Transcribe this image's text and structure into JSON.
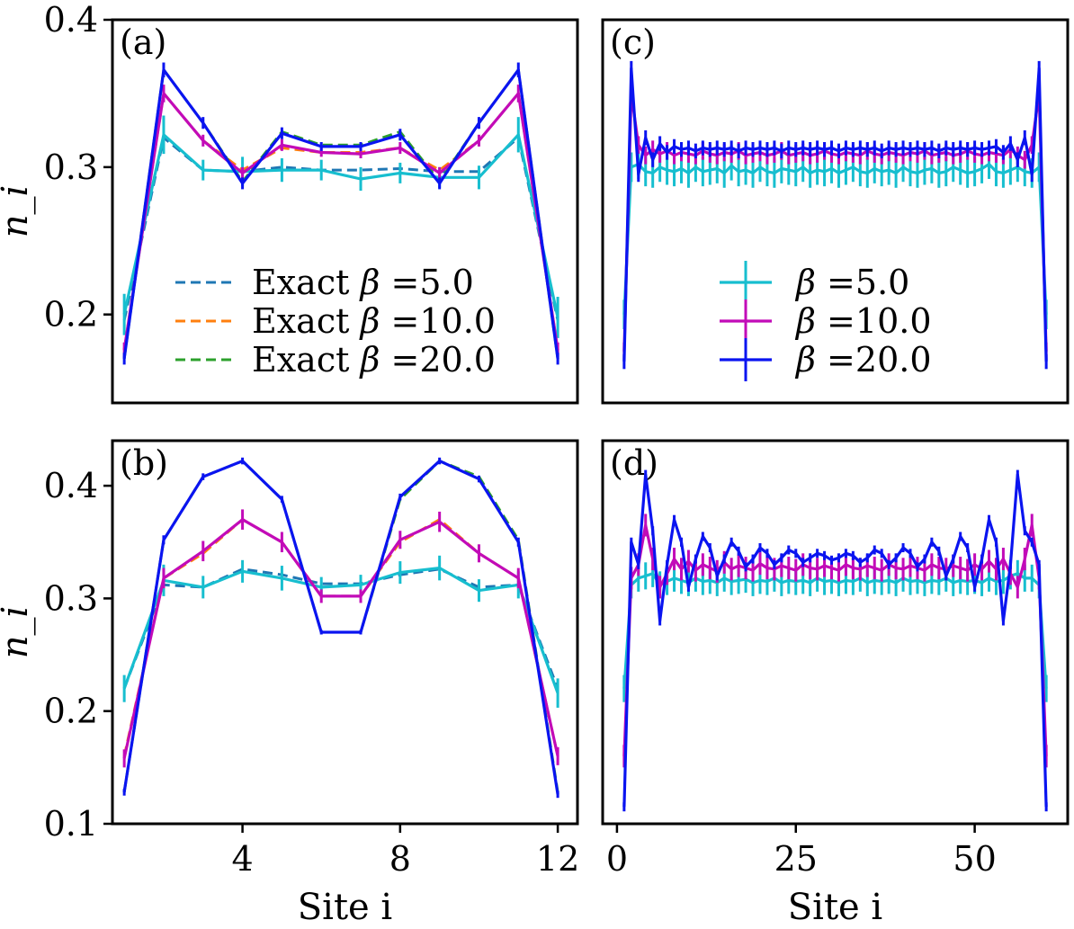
{
  "colors": {
    "exact_5": "#1f77b4",
    "exact_10": "#ff7f0e",
    "exact_20": "#2ca02c",
    "qmc_5": "#17becf",
    "qmc_10": "#c20bb8",
    "qmc_20": "#0a14f0"
  },
  "chart_data": [
    {
      "panel": "(a)",
      "type": "line",
      "ylabel": "n_i",
      "xlabel": "",
      "xlim": [
        0.7,
        12.5
      ],
      "ylim": [
        0.14,
        0.4
      ],
      "yticks": [
        "0.2",
        "0.3",
        "0.4"
      ],
      "ytick_values": [
        0.2,
        0.3,
        0.4
      ],
      "xticks": [],
      "xtick_values": [],
      "legend": {
        "placement": "lower-center",
        "entries": [
          {
            "prefix": "Exact ",
            "beta": "β",
            "value": " =5.0",
            "style": "dashed",
            "color_key": "exact_5"
          },
          {
            "prefix": "Exact ",
            "beta": "β",
            "value": " =10.0",
            "style": "dashed",
            "color_key": "exact_10"
          },
          {
            "prefix": "Exact ",
            "beta": "β",
            "value": " =20.0",
            "style": "dashed",
            "color_key": "exact_20"
          }
        ]
      },
      "x": [
        1,
        2,
        3,
        4,
        5,
        6,
        7,
        8,
        9,
        10,
        11,
        12
      ],
      "series": [
        {
          "name": "Exact β=5.0",
          "style": "dashed",
          "color_key": "exact_5",
          "values": [
            0.196,
            0.32,
            0.298,
            0.297,
            0.3,
            0.298,
            0.298,
            0.299,
            0.297,
            0.297,
            0.32,
            0.196
          ]
        },
        {
          "name": "Exact β=10.0",
          "style": "dashed",
          "color_key": "exact_10",
          "values": [
            0.176,
            0.35,
            0.318,
            0.298,
            0.313,
            0.31,
            0.31,
            0.313,
            0.298,
            0.318,
            0.35,
            0.176
          ]
        },
        {
          "name": "Exact β=20.0",
          "style": "dashed",
          "color_key": "exact_20",
          "values": [
            0.17,
            0.366,
            0.33,
            0.29,
            0.324,
            0.315,
            0.315,
            0.324,
            0.29,
            0.33,
            0.366,
            0.17
          ]
        },
        {
          "name": "β=5.0",
          "style": "solid",
          "color_key": "qmc_5",
          "values": [
            0.2,
            0.322,
            0.298,
            0.297,
            0.298,
            0.298,
            0.292,
            0.296,
            0.293,
            0.293,
            0.322,
            0.198
          ],
          "errors": [
            0.014,
            0.013,
            0.007,
            0.01,
            0.008,
            0.007,
            0.008,
            0.007,
            0.007,
            0.008,
            0.012,
            0.014
          ]
        },
        {
          "name": "β=10.0",
          "style": "solid",
          "color_key": "qmc_10",
          "values": [
            0.176,
            0.35,
            0.318,
            0.296,
            0.315,
            0.31,
            0.309,
            0.313,
            0.296,
            0.318,
            0.35,
            0.176
          ],
          "errors": [
            0.005,
            0.006,
            0.004,
            0.004,
            0.004,
            0.003,
            0.003,
            0.004,
            0.004,
            0.004,
            0.006,
            0.005
          ]
        },
        {
          "name": "β=20.0",
          "style": "solid",
          "color_key": "qmc_20",
          "values": [
            0.17,
            0.366,
            0.33,
            0.289,
            0.323,
            0.314,
            0.314,
            0.322,
            0.289,
            0.33,
            0.366,
            0.17
          ],
          "errors": [
            0.004,
            0.005,
            0.004,
            0.004,
            0.004,
            0.003,
            0.003,
            0.004,
            0.004,
            0.004,
            0.005,
            0.004
          ]
        }
      ]
    },
    {
      "panel": "(b)",
      "type": "line",
      "ylabel": "n_i",
      "xlabel": "Site i",
      "xlim": [
        0.7,
        12.5
      ],
      "ylim": [
        0.1,
        0.44
      ],
      "yticks": [
        "0.1",
        "0.2",
        "0.3",
        "0.4"
      ],
      "ytick_values": [
        0.1,
        0.2,
        0.3,
        0.4
      ],
      "xticks": [
        "4",
        "8",
        "12"
      ],
      "xtick_values": [
        4,
        8,
        12
      ],
      "x": [
        1,
        2,
        3,
        4,
        5,
        6,
        7,
        8,
        9,
        10,
        11,
        12
      ],
      "series": [
        {
          "name": "Exact β=5.0",
          "style": "dashed",
          "color_key": "exact_5",
          "values": [
            0.22,
            0.312,
            0.31,
            0.326,
            0.321,
            0.313,
            0.313,
            0.321,
            0.326,
            0.31,
            0.312,
            0.22
          ]
        },
        {
          "name": "Exact β=10.0",
          "style": "dashed",
          "color_key": "exact_10",
          "values": [
            0.16,
            0.318,
            0.34,
            0.37,
            0.35,
            0.302,
            0.302,
            0.35,
            0.37,
            0.34,
            0.318,
            0.16
          ]
        },
        {
          "name": "Exact β=20.0",
          "style": "dashed",
          "color_key": "exact_20",
          "values": [
            0.128,
            0.352,
            0.408,
            0.422,
            0.388,
            0.27,
            0.27,
            0.388,
            0.422,
            0.408,
            0.352,
            0.128
          ]
        },
        {
          "name": "β=5.0",
          "style": "solid",
          "color_key": "qmc_5",
          "values": [
            0.22,
            0.316,
            0.31,
            0.324,
            0.318,
            0.31,
            0.312,
            0.323,
            0.327,
            0.307,
            0.312,
            0.216
          ],
          "errors": [
            0.012,
            0.014,
            0.01,
            0.01,
            0.011,
            0.009,
            0.009,
            0.01,
            0.011,
            0.01,
            0.012,
            0.013
          ]
        },
        {
          "name": "β=10.0",
          "style": "solid",
          "color_key": "qmc_10",
          "values": [
            0.158,
            0.318,
            0.342,
            0.37,
            0.35,
            0.302,
            0.302,
            0.352,
            0.368,
            0.34,
            0.318,
            0.16
          ],
          "errors": [
            0.008,
            0.009,
            0.009,
            0.009,
            0.009,
            0.006,
            0.006,
            0.008,
            0.009,
            0.008,
            0.009,
            0.008
          ]
        },
        {
          "name": "β=20.0",
          "style": "solid",
          "color_key": "qmc_20",
          "values": [
            0.128,
            0.352,
            0.408,
            0.422,
            0.388,
            0.27,
            0.27,
            0.39,
            0.422,
            0.406,
            0.35,
            0.126
          ],
          "errors": [
            0.003,
            0.004,
            0.003,
            0.003,
            0.003,
            0.002,
            0.002,
            0.003,
            0.003,
            0.003,
            0.004,
            0.003
          ]
        }
      ]
    },
    {
      "panel": "(c)",
      "type": "line",
      "ylabel": "",
      "xlabel": "",
      "xlim": [
        -2,
        63
      ],
      "ylim": [
        0.14,
        0.4
      ],
      "yticks": [],
      "ytick_values": [],
      "xticks": [],
      "xtick_values": [],
      "legend": {
        "placement": "lower-center",
        "entries": [
          {
            "prefix": "",
            "beta": "β",
            "value": " =5.0",
            "style": "errorbar",
            "color_key": "qmc_5"
          },
          {
            "prefix": "",
            "beta": "β",
            "value": " =10.0",
            "style": "errorbar",
            "color_key": "qmc_10"
          },
          {
            "prefix": "",
            "beta": "β",
            "value": " =20.0",
            "style": "errorbar",
            "color_key": "qmc_20"
          }
        ]
      },
      "x_range": [
        1,
        60
      ],
      "series": [
        {
          "name": "β=5.0",
          "style": "solid",
          "color_key": "qmc_5",
          "values": [
            0.2,
            0.3,
            0.302,
            0.297,
            0.296,
            0.3,
            0.298,
            0.297,
            0.299,
            0.296,
            0.3,
            0.297,
            0.298,
            0.299,
            0.296,
            0.301,
            0.297,
            0.298,
            0.296,
            0.3,
            0.297,
            0.296,
            0.299,
            0.298,
            0.297,
            0.3,
            0.296,
            0.298,
            0.297,
            0.299,
            0.296,
            0.298,
            0.3,
            0.297,
            0.296,
            0.299,
            0.297,
            0.298,
            0.296,
            0.3,
            0.297,
            0.296,
            0.298,
            0.299,
            0.296,
            0.297,
            0.3,
            0.298,
            0.296,
            0.297,
            0.299,
            0.302,
            0.297,
            0.296,
            0.298,
            0.3,
            0.297,
            0.296,
            0.3,
            0.2
          ],
          "error": 0.01
        },
        {
          "name": "β=10.0",
          "style": "solid",
          "color_key": "qmc_10",
          "values": [
            0.175,
            0.35,
            0.315,
            0.308,
            0.312,
            0.309,
            0.311,
            0.308,
            0.31,
            0.309,
            0.308,
            0.311,
            0.309,
            0.308,
            0.31,
            0.309,
            0.311,
            0.308,
            0.309,
            0.31,
            0.308,
            0.309,
            0.311,
            0.308,
            0.309,
            0.31,
            0.308,
            0.309,
            0.311,
            0.309,
            0.308,
            0.31,
            0.309,
            0.308,
            0.311,
            0.309,
            0.308,
            0.31,
            0.309,
            0.308,
            0.31,
            0.309,
            0.311,
            0.308,
            0.309,
            0.31,
            0.308,
            0.309,
            0.311,
            0.309,
            0.308,
            0.31,
            0.309,
            0.308,
            0.312,
            0.308,
            0.305,
            0.315,
            0.35,
            0.175
          ],
          "error": 0.006
        },
        {
          "name": "β=20.0",
          "style": "solid",
          "color_key": "qmc_20",
          "values": [
            0.168,
            0.367,
            0.295,
            0.32,
            0.305,
            0.316,
            0.31,
            0.314,
            0.312,
            0.313,
            0.311,
            0.313,
            0.312,
            0.313,
            0.312,
            0.313,
            0.311,
            0.313,
            0.312,
            0.313,
            0.312,
            0.313,
            0.311,
            0.313,
            0.312,
            0.313,
            0.312,
            0.313,
            0.312,
            0.313,
            0.311,
            0.313,
            0.312,
            0.313,
            0.312,
            0.313,
            0.311,
            0.313,
            0.312,
            0.313,
            0.312,
            0.313,
            0.312,
            0.313,
            0.311,
            0.313,
            0.312,
            0.313,
            0.312,
            0.313,
            0.312,
            0.313,
            0.314,
            0.31,
            0.316,
            0.305,
            0.32,
            0.295,
            0.367,
            0.168
          ],
          "error": 0.005
        }
      ]
    },
    {
      "panel": "(d)",
      "type": "line",
      "ylabel": "",
      "xlabel": "Site i",
      "xlim": [
        -2,
        63
      ],
      "ylim": [
        0.1,
        0.44
      ],
      "yticks": [],
      "ytick_values": [],
      "xticks": [
        "0",
        "25",
        "50"
      ],
      "xtick_values": [
        0,
        25,
        50
      ],
      "x_range": [
        1,
        60
      ],
      "series": [
        {
          "name": "β=5.0",
          "style": "solid",
          "color_key": "qmc_5",
          "values": [
            0.22,
            0.312,
            0.318,
            0.32,
            0.322,
            0.312,
            0.315,
            0.318,
            0.316,
            0.314,
            0.318,
            0.315,
            0.316,
            0.314,
            0.318,
            0.315,
            0.316,
            0.317,
            0.314,
            0.316,
            0.315,
            0.318,
            0.314,
            0.316,
            0.315,
            0.316,
            0.314,
            0.318,
            0.315,
            0.316,
            0.314,
            0.316,
            0.315,
            0.318,
            0.314,
            0.316,
            0.315,
            0.316,
            0.314,
            0.318,
            0.315,
            0.316,
            0.314,
            0.316,
            0.315,
            0.318,
            0.314,
            0.316,
            0.315,
            0.316,
            0.314,
            0.318,
            0.315,
            0.316,
            0.32,
            0.322,
            0.318,
            0.318,
            0.312,
            0.22
          ],
          "error": 0.012
        },
        {
          "name": "β=10.0",
          "style": "solid",
          "color_key": "qmc_10",
          "values": [
            0.16,
            0.318,
            0.33,
            0.365,
            0.335,
            0.31,
            0.322,
            0.335,
            0.326,
            0.333,
            0.325,
            0.33,
            0.327,
            0.324,
            0.332,
            0.326,
            0.329,
            0.327,
            0.325,
            0.331,
            0.327,
            0.326,
            0.329,
            0.327,
            0.325,
            0.33,
            0.327,
            0.326,
            0.329,
            0.327,
            0.325,
            0.33,
            0.327,
            0.326,
            0.329,
            0.327,
            0.325,
            0.33,
            0.327,
            0.326,
            0.329,
            0.327,
            0.325,
            0.33,
            0.327,
            0.326,
            0.329,
            0.327,
            0.325,
            0.33,
            0.326,
            0.333,
            0.326,
            0.335,
            0.322,
            0.31,
            0.335,
            0.365,
            0.318,
            0.16
          ],
          "error": 0.01
        },
        {
          "name": "β=20.0",
          "style": "solid",
          "color_key": "qmc_20",
          "values": [
            0.115,
            0.35,
            0.33,
            0.41,
            0.36,
            0.28,
            0.33,
            0.37,
            0.35,
            0.31,
            0.335,
            0.355,
            0.345,
            0.32,
            0.335,
            0.35,
            0.342,
            0.328,
            0.335,
            0.345,
            0.34,
            0.33,
            0.336,
            0.343,
            0.34,
            0.332,
            0.336,
            0.34,
            0.338,
            0.334,
            0.336,
            0.34,
            0.338,
            0.332,
            0.336,
            0.343,
            0.34,
            0.33,
            0.336,
            0.345,
            0.34,
            0.328,
            0.335,
            0.35,
            0.342,
            0.32,
            0.335,
            0.355,
            0.345,
            0.31,
            0.335,
            0.37,
            0.35,
            0.28,
            0.33,
            0.41,
            0.36,
            0.35,
            0.33,
            0.115
          ],
          "error": 0.004
        }
      ]
    }
  ]
}
